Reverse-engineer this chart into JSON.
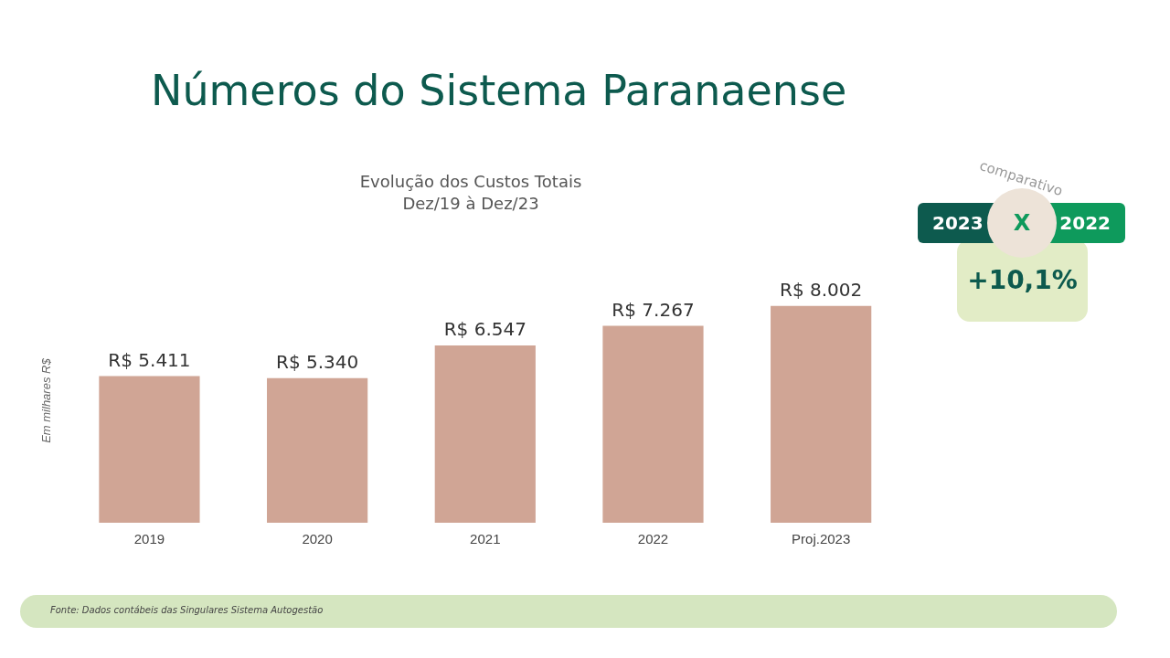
{
  "chart_data": {
    "type": "bar",
    "title": "Evolução dos Custos Totais",
    "subtitle": "Dez/19 à Dez/23",
    "ylabel": "Em milhares R$",
    "categories": [
      "2019",
      "2020",
      "2021",
      "2022",
      "Proj.2023"
    ],
    "values": [
      5411,
      5340,
      6547,
      7267,
      8002
    ],
    "value_labels": [
      "R$ 5.411",
      "R$ 5.340",
      "R$ 6.547",
      "R$ 7.267",
      "R$ 8.002"
    ],
    "color": "#d0a595",
    "grid": false,
    "legend": false,
    "tick_labels": "x",
    "annotations": [
      "Números do Sistema Paranaense",
      "comparativo",
      "2023",
      "X",
      "2022",
      "+10,1%",
      "Fonte: Dados contábeis das Singulares Sistema Autogestão"
    ]
  }
}
